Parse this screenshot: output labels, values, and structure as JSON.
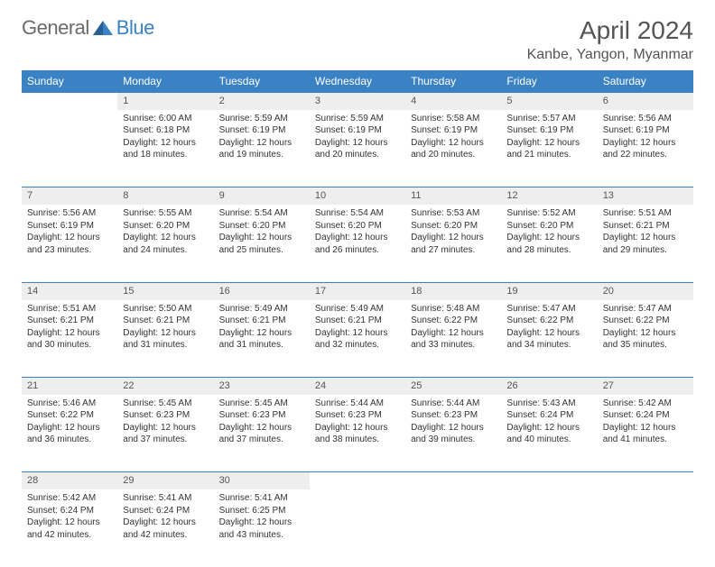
{
  "logo": {
    "general": "General",
    "blue": "Blue"
  },
  "title": "April 2024",
  "location": "Kanbe, Yangon, Myanmar",
  "colors": {
    "header_bg": "#3b82c4",
    "header_text": "#ffffff",
    "daynum_bg": "#eeeeee",
    "row_border": "#3b82c4",
    "page_bg": "#ffffff",
    "body_text": "#333333",
    "logo_gray": "#6b6b6b",
    "logo_blue": "#3b82c4",
    "title_color": "#555555"
  },
  "typography": {
    "title_fontsize": 28,
    "location_fontsize": 16,
    "weekday_fontsize": 12,
    "daynum_fontsize": 11,
    "cell_fontsize": 10
  },
  "weekdays": [
    "Sunday",
    "Monday",
    "Tuesday",
    "Wednesday",
    "Thursday",
    "Friday",
    "Saturday"
  ],
  "weeks": [
    {
      "nums": [
        "",
        "1",
        "2",
        "3",
        "4",
        "5",
        "6"
      ],
      "cells": [
        {
          "lines": []
        },
        {
          "lines": [
            "Sunrise: 6:00 AM",
            "Sunset: 6:18 PM",
            "Daylight: 12 hours",
            "and 18 minutes."
          ]
        },
        {
          "lines": [
            "Sunrise: 5:59 AM",
            "Sunset: 6:19 PM",
            "Daylight: 12 hours",
            "and 19 minutes."
          ]
        },
        {
          "lines": [
            "Sunrise: 5:59 AM",
            "Sunset: 6:19 PM",
            "Daylight: 12 hours",
            "and 20 minutes."
          ]
        },
        {
          "lines": [
            "Sunrise: 5:58 AM",
            "Sunset: 6:19 PM",
            "Daylight: 12 hours",
            "and 20 minutes."
          ]
        },
        {
          "lines": [
            "Sunrise: 5:57 AM",
            "Sunset: 6:19 PM",
            "Daylight: 12 hours",
            "and 21 minutes."
          ]
        },
        {
          "lines": [
            "Sunrise: 5:56 AM",
            "Sunset: 6:19 PM",
            "Daylight: 12 hours",
            "and 22 minutes."
          ]
        }
      ]
    },
    {
      "nums": [
        "7",
        "8",
        "9",
        "10",
        "11",
        "12",
        "13"
      ],
      "cells": [
        {
          "lines": [
            "Sunrise: 5:56 AM",
            "Sunset: 6:19 PM",
            "Daylight: 12 hours",
            "and 23 minutes."
          ]
        },
        {
          "lines": [
            "Sunrise: 5:55 AM",
            "Sunset: 6:20 PM",
            "Daylight: 12 hours",
            "and 24 minutes."
          ]
        },
        {
          "lines": [
            "Sunrise: 5:54 AM",
            "Sunset: 6:20 PM",
            "Daylight: 12 hours",
            "and 25 minutes."
          ]
        },
        {
          "lines": [
            "Sunrise: 5:54 AM",
            "Sunset: 6:20 PM",
            "Daylight: 12 hours",
            "and 26 minutes."
          ]
        },
        {
          "lines": [
            "Sunrise: 5:53 AM",
            "Sunset: 6:20 PM",
            "Daylight: 12 hours",
            "and 27 minutes."
          ]
        },
        {
          "lines": [
            "Sunrise: 5:52 AM",
            "Sunset: 6:20 PM",
            "Daylight: 12 hours",
            "and 28 minutes."
          ]
        },
        {
          "lines": [
            "Sunrise: 5:51 AM",
            "Sunset: 6:21 PM",
            "Daylight: 12 hours",
            "and 29 minutes."
          ]
        }
      ]
    },
    {
      "nums": [
        "14",
        "15",
        "16",
        "17",
        "18",
        "19",
        "20"
      ],
      "cells": [
        {
          "lines": [
            "Sunrise: 5:51 AM",
            "Sunset: 6:21 PM",
            "Daylight: 12 hours",
            "and 30 minutes."
          ]
        },
        {
          "lines": [
            "Sunrise: 5:50 AM",
            "Sunset: 6:21 PM",
            "Daylight: 12 hours",
            "and 31 minutes."
          ]
        },
        {
          "lines": [
            "Sunrise: 5:49 AM",
            "Sunset: 6:21 PM",
            "Daylight: 12 hours",
            "and 31 minutes."
          ]
        },
        {
          "lines": [
            "Sunrise: 5:49 AM",
            "Sunset: 6:21 PM",
            "Daylight: 12 hours",
            "and 32 minutes."
          ]
        },
        {
          "lines": [
            "Sunrise: 5:48 AM",
            "Sunset: 6:22 PM",
            "Daylight: 12 hours",
            "and 33 minutes."
          ]
        },
        {
          "lines": [
            "Sunrise: 5:47 AM",
            "Sunset: 6:22 PM",
            "Daylight: 12 hours",
            "and 34 minutes."
          ]
        },
        {
          "lines": [
            "Sunrise: 5:47 AM",
            "Sunset: 6:22 PM",
            "Daylight: 12 hours",
            "and 35 minutes."
          ]
        }
      ]
    },
    {
      "nums": [
        "21",
        "22",
        "23",
        "24",
        "25",
        "26",
        "27"
      ],
      "cells": [
        {
          "lines": [
            "Sunrise: 5:46 AM",
            "Sunset: 6:22 PM",
            "Daylight: 12 hours",
            "and 36 minutes."
          ]
        },
        {
          "lines": [
            "Sunrise: 5:45 AM",
            "Sunset: 6:23 PM",
            "Daylight: 12 hours",
            "and 37 minutes."
          ]
        },
        {
          "lines": [
            "Sunrise: 5:45 AM",
            "Sunset: 6:23 PM",
            "Daylight: 12 hours",
            "and 37 minutes."
          ]
        },
        {
          "lines": [
            "Sunrise: 5:44 AM",
            "Sunset: 6:23 PM",
            "Daylight: 12 hours",
            "and 38 minutes."
          ]
        },
        {
          "lines": [
            "Sunrise: 5:44 AM",
            "Sunset: 6:23 PM",
            "Daylight: 12 hours",
            "and 39 minutes."
          ]
        },
        {
          "lines": [
            "Sunrise: 5:43 AM",
            "Sunset: 6:24 PM",
            "Daylight: 12 hours",
            "and 40 minutes."
          ]
        },
        {
          "lines": [
            "Sunrise: 5:42 AM",
            "Sunset: 6:24 PM",
            "Daylight: 12 hours",
            "and 41 minutes."
          ]
        }
      ]
    },
    {
      "nums": [
        "28",
        "29",
        "30",
        "",
        "",
        "",
        ""
      ],
      "cells": [
        {
          "lines": [
            "Sunrise: 5:42 AM",
            "Sunset: 6:24 PM",
            "Daylight: 12 hours",
            "and 42 minutes."
          ]
        },
        {
          "lines": [
            "Sunrise: 5:41 AM",
            "Sunset: 6:24 PM",
            "Daylight: 12 hours",
            "and 42 minutes."
          ]
        },
        {
          "lines": [
            "Sunrise: 5:41 AM",
            "Sunset: 6:25 PM",
            "Daylight: 12 hours",
            "and 43 minutes."
          ]
        },
        {
          "lines": []
        },
        {
          "lines": []
        },
        {
          "lines": []
        },
        {
          "lines": []
        }
      ]
    }
  ]
}
